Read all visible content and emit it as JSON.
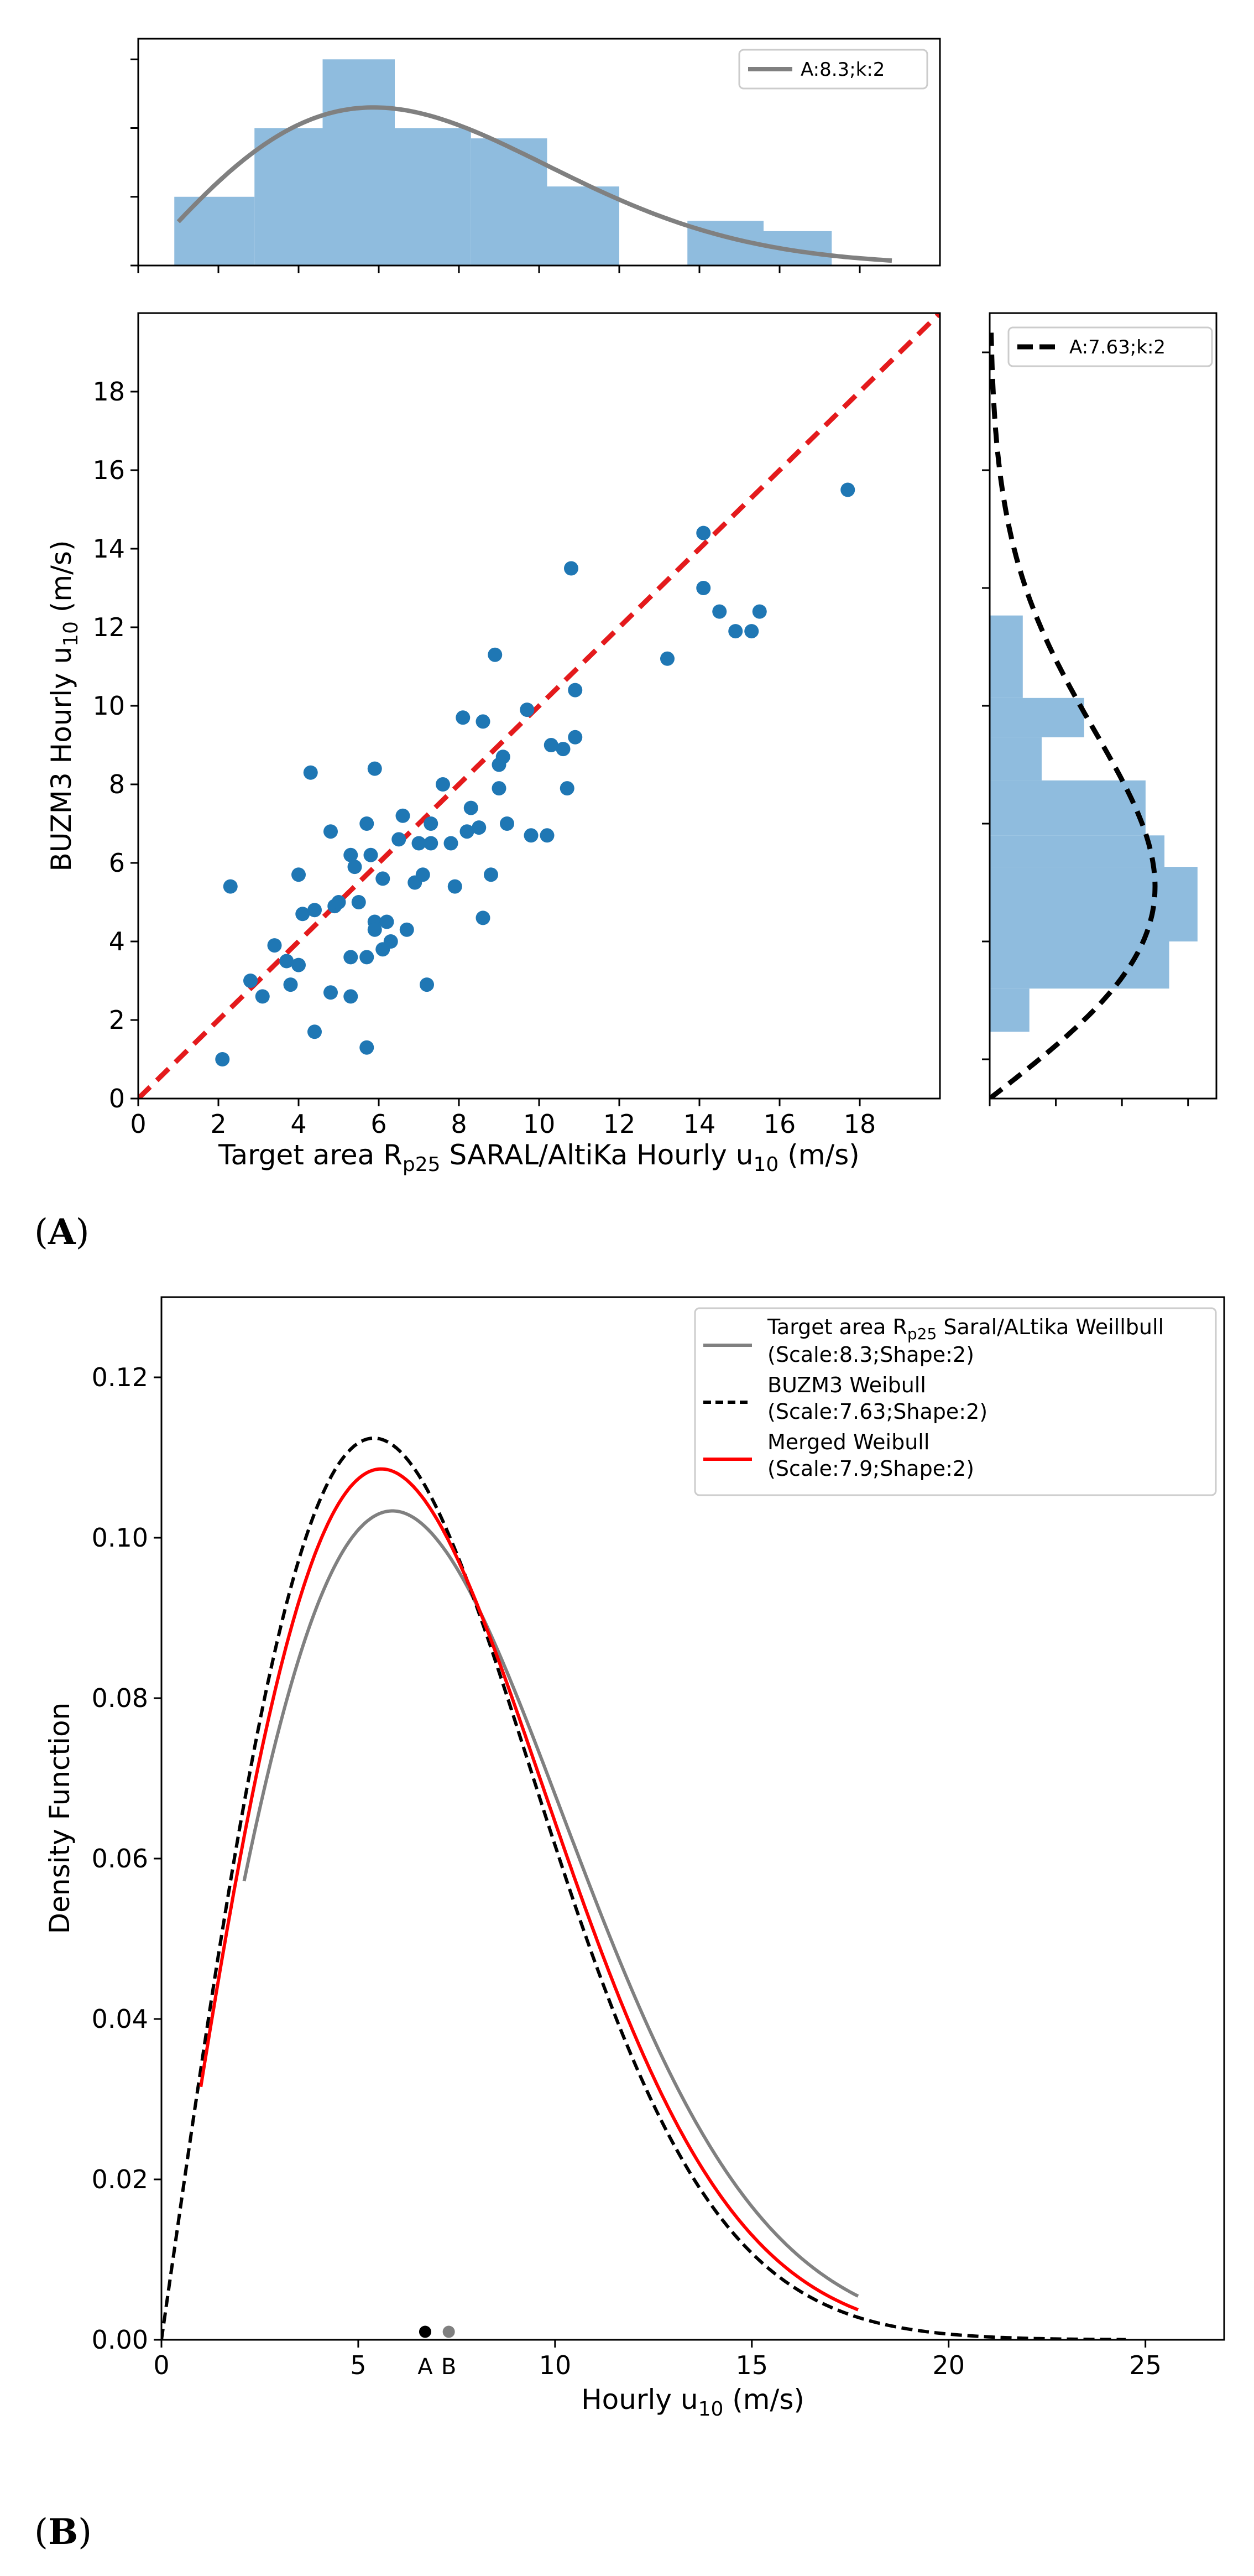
{
  "panels": {
    "a_label_open": "(",
    "a_label_letter": "A",
    "a_label_close": ")",
    "b_label_open": "(",
    "b_label_letter": "B",
    "b_label_close": ")"
  },
  "colors": {
    "scatter": "#1f77b4",
    "hist_fill": "#8fbcde",
    "gray_line": "#808080",
    "red_line": "#ff0000",
    "red_dash": "#e41a1c",
    "black": "#000000"
  },
  "chart_data": [
    {
      "id": "scatter",
      "type": "scatter",
      "xlabel_pre": "Target area  R",
      "xlabel_sub": "p25",
      "xlabel_post": " SARAL/AltiKa Hourly u",
      "xlabel_sub2": "10",
      "xlabel_end": " (m/s)",
      "ylabel_pre": "BUZM3 Hourly u",
      "ylabel_sub": "10",
      "ylabel_end": " (m/s)",
      "xlim": [
        0,
        20
      ],
      "ylim": [
        0,
        20
      ],
      "xticks": [
        0,
        2,
        4,
        6,
        8,
        10,
        12,
        14,
        16,
        18
      ],
      "yticks": [
        0,
        2,
        4,
        6,
        8,
        10,
        12,
        14,
        16,
        18
      ],
      "identity_line": [
        [
          0,
          0
        ],
        [
          20,
          20
        ]
      ],
      "points": [
        [
          2.1,
          1.0
        ],
        [
          2.3,
          5.4
        ],
        [
          2.8,
          3.0
        ],
        [
          3.1,
          2.6
        ],
        [
          3.4,
          3.9
        ],
        [
          3.7,
          3.5
        ],
        [
          3.8,
          2.9
        ],
        [
          4.0,
          5.7
        ],
        [
          4.0,
          3.4
        ],
        [
          4.1,
          4.7
        ],
        [
          4.3,
          8.3
        ],
        [
          4.4,
          4.8
        ],
        [
          4.4,
          1.7
        ],
        [
          4.8,
          2.7
        ],
        [
          4.8,
          6.8
        ],
        [
          4.9,
          4.9
        ],
        [
          5.0,
          5.0
        ],
        [
          5.3,
          3.6
        ],
        [
          5.3,
          2.6
        ],
        [
          5.3,
          6.2
        ],
        [
          5.4,
          5.9
        ],
        [
          5.5,
          5.0
        ],
        [
          5.7,
          1.3
        ],
        [
          5.7,
          3.6
        ],
        [
          5.7,
          7.0
        ],
        [
          5.8,
          6.2
        ],
        [
          5.9,
          8.4
        ],
        [
          5.9,
          4.5
        ],
        [
          5.9,
          4.3
        ],
        [
          6.1,
          5.6
        ],
        [
          6.1,
          3.8
        ],
        [
          6.2,
          4.5
        ],
        [
          6.3,
          4.0
        ],
        [
          6.5,
          6.6
        ],
        [
          6.6,
          7.2
        ],
        [
          6.7,
          4.3
        ],
        [
          6.9,
          5.5
        ],
        [
          7.0,
          6.5
        ],
        [
          7.1,
          5.7
        ],
        [
          7.2,
          2.9
        ],
        [
          7.3,
          7.0
        ],
        [
          7.3,
          6.5
        ],
        [
          7.6,
          8.0
        ],
        [
          7.8,
          6.5
        ],
        [
          7.9,
          5.4
        ],
        [
          8.1,
          9.7
        ],
        [
          8.2,
          6.8
        ],
        [
          8.3,
          7.4
        ],
        [
          8.5,
          6.9
        ],
        [
          8.6,
          4.6
        ],
        [
          8.6,
          9.6
        ],
        [
          8.8,
          5.7
        ],
        [
          8.9,
          11.3
        ],
        [
          9.0,
          7.9
        ],
        [
          9.0,
          8.5
        ],
        [
          9.1,
          8.7
        ],
        [
          9.2,
          7.0
        ],
        [
          9.7,
          9.9
        ],
        [
          9.8,
          6.7
        ],
        [
          10.2,
          6.7
        ],
        [
          10.3,
          9.0
        ],
        [
          10.6,
          8.9
        ],
        [
          10.7,
          7.9
        ],
        [
          10.8,
          13.5
        ],
        [
          10.9,
          10.4
        ],
        [
          10.9,
          9.2
        ],
        [
          13.2,
          11.2
        ],
        [
          14.1,
          14.4
        ],
        [
          14.1,
          13.0
        ],
        [
          14.5,
          12.4
        ],
        [
          14.9,
          11.9
        ],
        [
          15.3,
          11.9
        ],
        [
          15.5,
          12.4
        ],
        [
          17.7,
          15.5
        ]
      ]
    },
    {
      "id": "top_hist",
      "type": "bar",
      "legend": "A:8.3;k:2",
      "bins": [
        [
          0.9,
          2.9,
          1
        ],
        [
          2.9,
          4.6,
          2
        ],
        [
          4.6,
          6.4,
          3
        ],
        [
          6.4,
          8.3,
          2
        ],
        [
          8.3,
          10.2,
          1.85
        ],
        [
          10.2,
          12.0,
          1.15
        ],
        [
          13.7,
          15.6,
          0.65
        ],
        [
          15.6,
          17.3,
          0.5
        ]
      ],
      "curve": {
        "scale": 8.3,
        "shape": 2,
        "x_range": [
          1.0,
          18.8
        ]
      }
    },
    {
      "id": "right_hist",
      "type": "bar",
      "legend": "A:7.63;k:2",
      "bins": [
        [
          1.7,
          2.8,
          0.42
        ],
        [
          2.8,
          4.0,
          1.9
        ],
        [
          4.0,
          5.9,
          2.2
        ],
        [
          5.9,
          6.7,
          1.85
        ],
        [
          6.7,
          8.1,
          1.65
        ],
        [
          8.1,
          9.2,
          0.55
        ],
        [
          9.2,
          10.2,
          1.0
        ],
        [
          10.2,
          12.3,
          0.35
        ]
      ],
      "curve": {
        "scale": 7.63,
        "shape": 2,
        "y_range": [
          0,
          19.5
        ]
      }
    },
    {
      "id": "pdf",
      "type": "line",
      "xlabel_pre": "Hourly u",
      "xlabel_sub": "10",
      "xlabel_end": " (m/s)",
      "ylabel": "Density Function",
      "xlim": [
        0,
        27
      ],
      "ylim": [
        0,
        0.13
      ],
      "xticks": [
        0,
        5,
        10,
        15,
        20,
        25
      ],
      "yticks": [
        "0.00",
        "0.02",
        "0.04",
        "0.06",
        "0.08",
        "0.10",
        "0.12"
      ],
      "series": [
        {
          "name_pre": "Target area R",
          "name_sub": "p25",
          "name_post": " Saral/ALtika Weillbull",
          "name_line2": "(Scale:8.3;Shape:2)",
          "scale": 8.3,
          "shape": 2,
          "x_range": [
            2.1,
            17.7
          ],
          "style": "solid-gray"
        },
        {
          "name_pre": "BUZM3  Weibull",
          "name_line2": "(Scale:7.63;Shape:2)",
          "scale": 7.63,
          "shape": 2,
          "x_range": [
            0,
            24.5
          ],
          "style": "dashed-black"
        },
        {
          "name_pre": "Merged Weibull",
          "name_line2": "(Scale:7.9;Shape:2)",
          "scale": 7.9,
          "shape": 2,
          "x_range": [
            1.0,
            17.7
          ],
          "style": "solid-red"
        }
      ],
      "markers": [
        {
          "label": "A",
          "x": 6.7,
          "y": 0.001,
          "color": "#000000"
        },
        {
          "label": "B",
          "x": 7.3,
          "y": 0.001,
          "color": "#808080"
        }
      ]
    }
  ]
}
